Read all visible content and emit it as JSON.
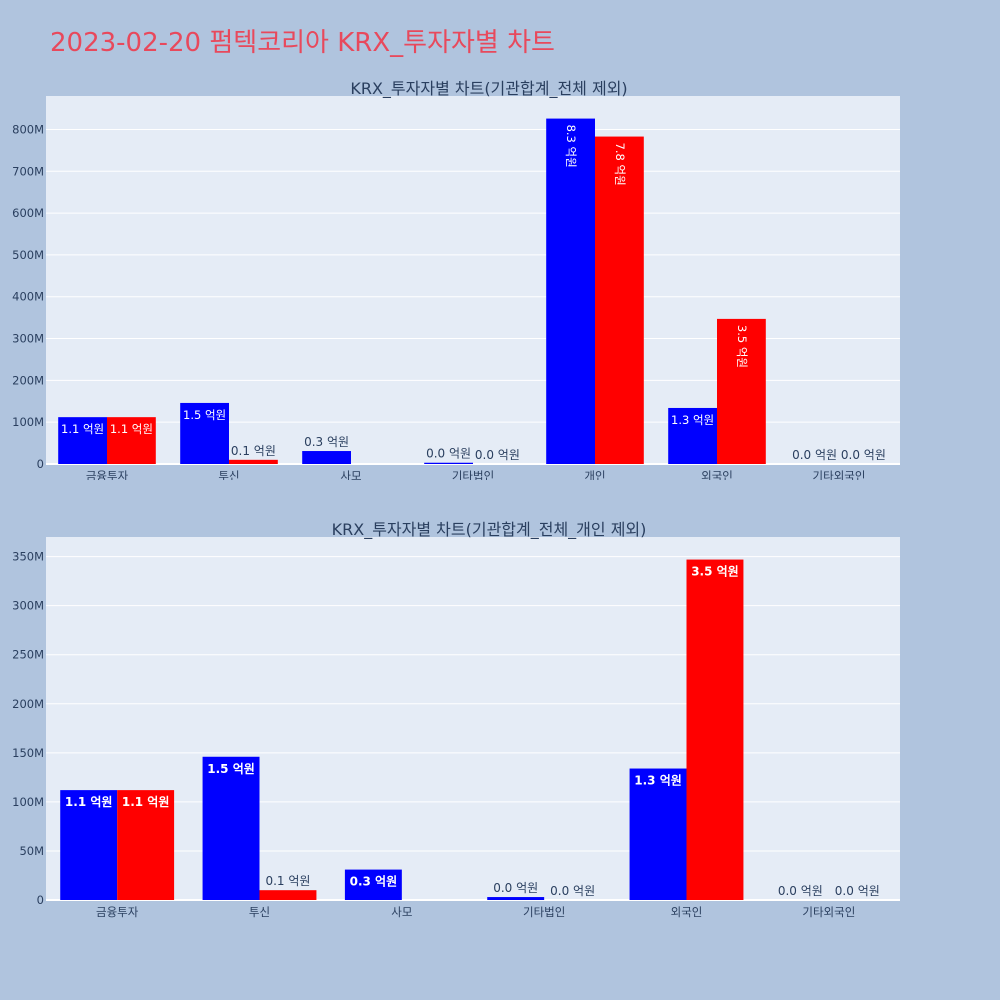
{
  "title": "2023-02-20 펌텍코리아 KRX_투자자별 차트",
  "colors": {
    "buy": "#0000ff",
    "sell": "#ff0000",
    "plot_bg": "#e5ecf6",
    "page_bg": "#b0c4de"
  },
  "chart_data": [
    {
      "type": "bar",
      "title": "KRX_투자자별 차트(기관합계_전체 제외)",
      "categories": [
        "금융투자",
        "투신",
        "사모",
        "기타법인",
        "개인",
        "외국인",
        "기타외국인"
      ],
      "series": [
        {
          "values": [
            112000000,
            146000000,
            31000000,
            3000000,
            826000000,
            134000000,
            0
          ],
          "labels": [
            "1.1 억원",
            "1.5 억원",
            "0.3 억원",
            "0.0 억원",
            "8.3 억원",
            "1.3 억원",
            "0.0 억원"
          ]
        },
        {
          "values": [
            112000000,
            10000000,
            0,
            0,
            783000000,
            347000000,
            0
          ],
          "labels": [
            "1.1 억원",
            "0.1 억원",
            "",
            "0.0 억원",
            "7.8 억원",
            "3.5 억원",
            "0.0 억원"
          ]
        }
      ],
      "ylim": [
        0,
        880000000
      ],
      "yticks": [
        0,
        100000000,
        200000000,
        300000000,
        400000000,
        500000000,
        600000000,
        700000000,
        800000000
      ],
      "ytick_labels": [
        "0",
        "100M",
        "200M",
        "300M",
        "400M",
        "500M",
        "600M",
        "700M",
        "800M"
      ],
      "grid": true
    },
    {
      "type": "bar",
      "title": "KRX_투자자별 차트(기관합계_전체_개인 제외)",
      "categories": [
        "금융투자",
        "투신",
        "사모",
        "기타법인",
        "외국인",
        "기타외국인"
      ],
      "series": [
        {
          "values": [
            112000000,
            146000000,
            31000000,
            3000000,
            134000000,
            0
          ],
          "labels": [
            "1.1 억원",
            "1.5 억원",
            "0.3 억원",
            "0.0 억원",
            "1.3 억원",
            "0.0 억원"
          ]
        },
        {
          "values": [
            112000000,
            10000000,
            0,
            0,
            347000000,
            0
          ],
          "labels": [
            "1.1 억원",
            "0.1 억원",
            "",
            "0.0 억원",
            "3.5 억원",
            "0.0 억원"
          ]
        }
      ],
      "ylim": [
        0,
        370000000
      ],
      "yticks": [
        0,
        50000000,
        100000000,
        150000000,
        200000000,
        250000000,
        300000000,
        350000000
      ],
      "ytick_labels": [
        "0",
        "50M",
        "100M",
        "150M",
        "200M",
        "250M",
        "300M",
        "350M"
      ],
      "grid": true
    }
  ]
}
